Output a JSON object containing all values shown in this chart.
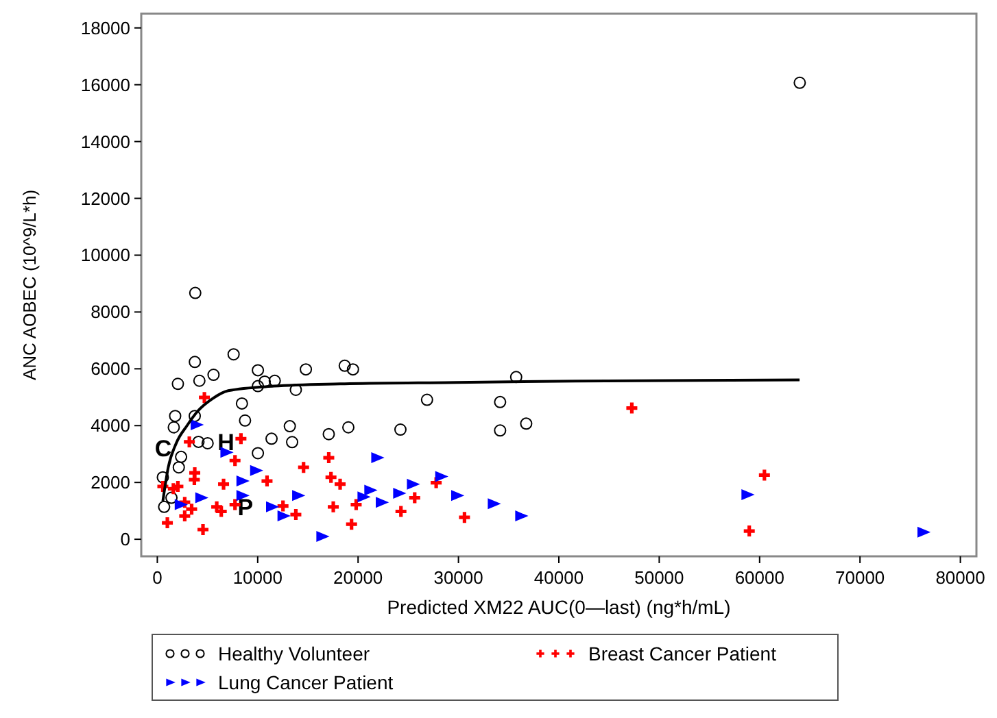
{
  "chart_data": {
    "type": "scatter",
    "xlabel": "Predicted XM22 AUC(0—last) (ng*h/mL)",
    "ylabel": "ANC AOBEC (10^9/L*h)",
    "xlim": [
      -1600,
      81600
    ],
    "ylim": [
      -600,
      18500
    ],
    "xticks": [
      0,
      10000,
      20000,
      30000,
      40000,
      50000,
      60000,
      70000,
      80000
    ],
    "yticks": [
      0,
      2000,
      4000,
      6000,
      8000,
      10000,
      12000,
      14000,
      16000,
      18000
    ],
    "legend": "bottom",
    "series": [
      {
        "name": "Healthy Volunteer",
        "marker": "circle",
        "color": "#000000",
        "x": [
          64000,
          3780,
          3740,
          7600,
          2050,
          4190,
          5600,
          10020,
          14800,
          18670,
          19490,
          10700,
          11700,
          10020,
          13800,
          35750,
          26870,
          34150,
          34150,
          36750,
          8430,
          8740,
          1780,
          1640,
          3730,
          13200,
          13430,
          19030,
          17080,
          24220,
          11380,
          10020,
          4100,
          5010,
          2370,
          2140,
          550,
          680,
          1410
        ],
        "values": [
          16070,
          8670,
          6240,
          6510,
          5470,
          5580,
          5790,
          5950,
          5980,
          6110,
          5980,
          5550,
          5580,
          5390,
          5260,
          5710,
          4910,
          4830,
          3830,
          4070,
          4780,
          4180,
          4340,
          3940,
          4340,
          3980,
          3420,
          3940,
          3700,
          3860,
          3540,
          3030,
          3430,
          3380,
          2900,
          2530,
          2180,
          1140,
          1460
        ]
      },
      {
        "name": "Breast Cancer Patient",
        "marker": "cross",
        "color": "#ff0000",
        "x": [
          4690,
          3190,
          8330,
          7740,
          3730,
          6600,
          10930,
          14570,
          17080,
          17300,
          18210,
          27780,
          25640,
          24270,
          30600,
          19810,
          17530,
          19350,
          13800,
          12520,
          7740,
          5920,
          6370,
          4550,
          1000,
          2730,
          3420,
          2730,
          1600,
          2050,
          3690,
          550,
          47270,
          60480,
          58970
        ],
        "values": [
          4990,
          3430,
          3540,
          2770,
          2340,
          1940,
          2050,
          2530,
          2870,
          2180,
          1940,
          1990,
          1460,
          980,
          770,
          1220,
          1140,
          530,
          870,
          1170,
          1220,
          1140,
          980,
          340,
          580,
          820,
          1060,
          1300,
          1780,
          1860,
          2100,
          1860,
          4620,
          2260,
          290
        ]
      },
      {
        "name": "Lung Cancer Patient",
        "marker": "triangle",
        "color": "#0000ff",
        "x": [
          3870,
          6830,
          9790,
          8430,
          8430,
          4330,
          2280,
          11380,
          12520,
          13980,
          16390,
          21860,
          21170,
          20490,
          22310,
          24040,
          25410,
          28230,
          29820,
          33470,
          36200,
          58740,
          76270
        ],
        "values": [
          4030,
          3060,
          2420,
          2050,
          1540,
          1460,
          1220,
          1140,
          820,
          1540,
          100,
          2870,
          1730,
          1490,
          1300,
          1620,
          1940,
          2210,
          1540,
          1250,
          820,
          1570,
          250
        ]
      },
      {
        "type": "line",
        "color": "#000000",
        "x": [
          550,
          1090,
          1910,
          2960,
          4000,
          5500,
          7060,
          11610,
          18210,
          29820,
          41660,
          63980
        ],
        "values": [
          1340,
          2530,
          3400,
          4000,
          4500,
          4950,
          5230,
          5390,
          5470,
          5520,
          5570,
          5610
        ]
      }
    ],
    "annotations": [
      {
        "text": "C",
        "x": 1140,
        "y": 3220
      },
      {
        "text": "H",
        "x": 6830,
        "y": 3430
      },
      {
        "text": "P",
        "x": 8780,
        "y": 1140
      }
    ]
  }
}
